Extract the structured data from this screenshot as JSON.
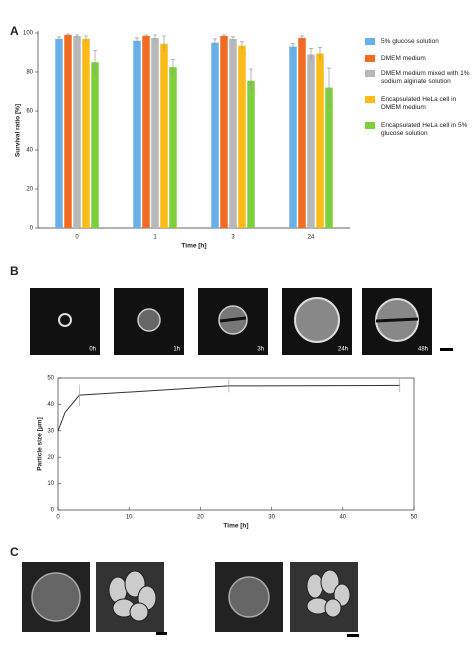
{
  "panel_labels": [
    "A",
    "B",
    "C"
  ],
  "micrograph_labels": [
    "0h",
    "1h",
    "3h",
    "24h",
    "48h"
  ],
  "chart_data": [
    {
      "type": "bar",
      "categories": [
        "0",
        "1",
        "3",
        "24"
      ],
      "xlabel": "Time [h]",
      "ylabel": "Survival ratio [%]",
      "ylim": [
        0,
        100
      ],
      "yticks": [
        0,
        20,
        40,
        60,
        80,
        100
      ],
      "series": [
        {
          "name": "5% glucose solution",
          "color": "#6ab0e8",
          "values": [
            97,
            96,
            95,
            93
          ],
          "errors": [
            1,
            1.5,
            2,
            1.5
          ]
        },
        {
          "name": "DMEM medium",
          "color": "#f26b22",
          "values": [
            99,
            98.5,
            98.5,
            97.5
          ],
          "errors": [
            0.5,
            0.5,
            0.5,
            1
          ]
        },
        {
          "name": "DMEM medium mixed with 1% sodium alginate solution",
          "color": "#b8b8b8",
          "values": [
            98.5,
            97.5,
            97,
            89
          ],
          "errors": [
            0.5,
            1.5,
            1,
            3
          ]
        },
        {
          "name": "Encapsulated HeLa cell in DMEM medium",
          "color": "#fcbb16",
          "values": [
            97,
            94.5,
            93.5,
            89.5
          ],
          "errors": [
            1.5,
            4,
            2,
            3
          ]
        },
        {
          "name": "Encapsulated HeLa cell in 5% glucose solution",
          "color": "#7ed03a",
          "values": [
            85,
            82.5,
            75.5,
            72
          ],
          "errors": [
            6,
            4,
            6,
            10
          ]
        }
      ]
    },
    {
      "type": "line",
      "xlabel": "Time [h]",
      "ylabel": "Particle size [μm]",
      "x": [
        0,
        1,
        3,
        24,
        48
      ],
      "values": [
        30,
        37,
        43.5,
        47,
        47.2
      ],
      "errors": [
        0,
        0,
        4,
        2.5,
        2.5
      ],
      "color": "#333333",
      "xlim": [
        0,
        50
      ],
      "xticks": [
        0,
        10,
        20,
        30,
        40,
        50
      ],
      "ylim": [
        0,
        50
      ],
      "yticks": [
        0,
        10,
        20,
        30,
        40,
        50
      ]
    }
  ]
}
